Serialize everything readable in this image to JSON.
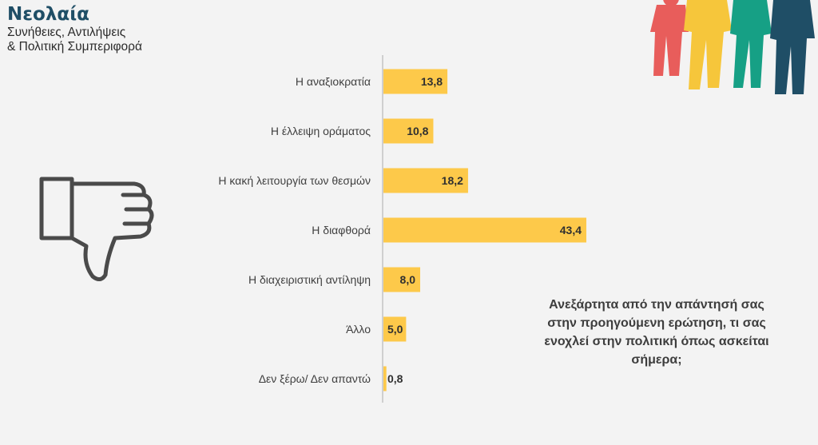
{
  "brand": {
    "title": "Νεολαία",
    "subtitle_line1": "Συνήθειες, Αντιλήψεις",
    "subtitle_line2": "& Πολιτική Συμπεριφορά"
  },
  "question": "Ανεξάρτητα από την απάντησή σας στην προηγούμενη ερώτηση, τι σας ενοχλεί στην πολιτική όπως ασκείται σήμερα;",
  "colors": {
    "bar": "#fdc94a",
    "axis": "#cfcfcf",
    "label": "#404040"
  },
  "icons": [
    "thumbs-down-icon",
    "people-silhouettes-icon"
  ],
  "chart_data": {
    "type": "bar",
    "orientation": "horizontal",
    "categories": [
      "Η αναξιοκρατία",
      "Η έλλειψη οράματος",
      "Η κακή λειτουργία των θεσμών",
      "Η διαφθορά",
      "Η διαχειριστική αντίληψη",
      "Άλλο",
      "Δεν ξέρω/ Δεν απαντώ"
    ],
    "values": [
      13.8,
      10.8,
      18.2,
      43.4,
      8.0,
      5.0,
      0.8
    ],
    "value_labels": [
      "13,8",
      "10,8",
      "18,2",
      "43,4",
      "8,0",
      "5,0",
      "0,8"
    ],
    "xlim": [
      0,
      50
    ],
    "grid": false,
    "legend": "none"
  }
}
